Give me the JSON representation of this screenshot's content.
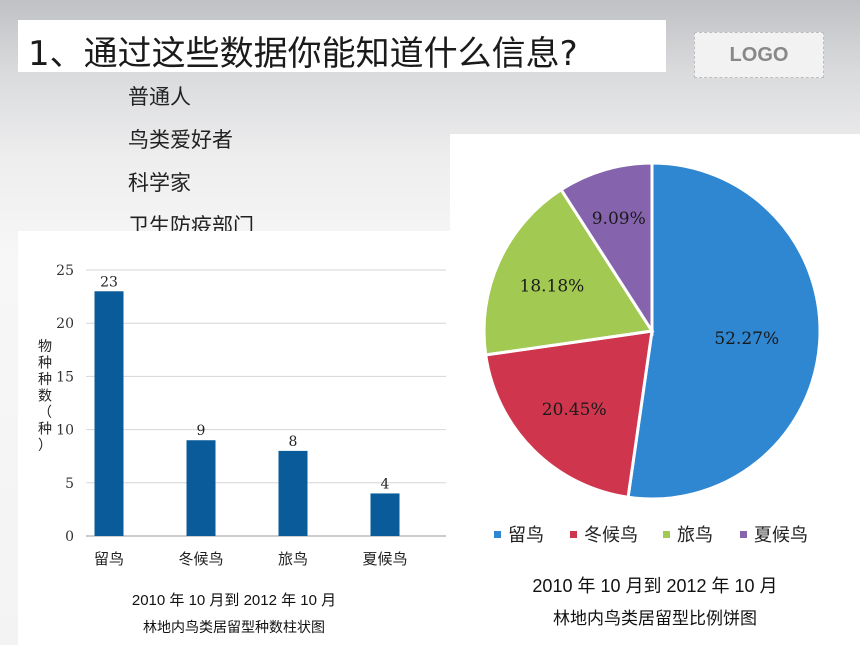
{
  "slide": {
    "title": "1、通过这些数据你能知道什么信息?",
    "logo": "LOGO",
    "audiences": [
      "普通人",
      "鸟类爱好者",
      "科学家",
      "卫生防疫部门"
    ]
  },
  "colors": {
    "bar": "#0a5b99",
    "pie": [
      "#2f86d1",
      "#cf364e",
      "#a2c952",
      "#8564ad"
    ]
  },
  "chart_data": [
    {
      "type": "bar",
      "categories": [
        "留鸟",
        "冬候鸟",
        "旅鸟",
        "夏候鸟"
      ],
      "values": [
        23,
        9,
        8,
        4
      ],
      "ylabel": "物种种数（种）",
      "ylim": [
        0,
        25
      ],
      "yticks": [
        0,
        5,
        10,
        15,
        20,
        25
      ],
      "grid": true,
      "caption_line1": "2010 年 10 月到 2012 年 10 月",
      "caption_line2": "林地内鸟类居留型种数柱状图"
    },
    {
      "type": "pie",
      "labels": [
        "留鸟",
        "冬候鸟",
        "旅鸟",
        "夏候鸟"
      ],
      "values": [
        52.27,
        20.45,
        18.18,
        9.09
      ],
      "value_labels": [
        "52.27%",
        "20.45%",
        "18.18%",
        "9.09%"
      ],
      "legend": "bottom",
      "caption_line1": "2010 年 10 月到 2012 年 10 月",
      "caption_line2": "林地内鸟类居留型比例饼图"
    }
  ]
}
